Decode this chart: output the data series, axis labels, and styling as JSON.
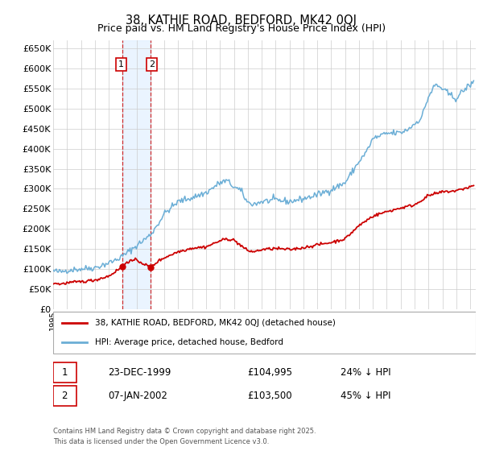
{
  "title": "38, KATHIE ROAD, BEDFORD, MK42 0QJ",
  "subtitle": "Price paid vs. HM Land Registry's House Price Index (HPI)",
  "legend_entry1": "38, KATHIE ROAD, BEDFORD, MK42 0QJ (detached house)",
  "legend_entry2": "HPI: Average price, detached house, Bedford",
  "sale1_date": "23-DEC-1999",
  "sale1_price": 104995,
  "sale1_label": "24% ↓ HPI",
  "sale2_date": "07-JAN-2002",
  "sale2_price": 103500,
  "sale2_label": "45% ↓ HPI",
  "footnote": "Contains HM Land Registry data © Crown copyright and database right 2025.\nThis data is licensed under the Open Government Licence v3.0.",
  "hpi_color": "#6baed6",
  "price_color": "#cc0000",
  "background_color": "#ffffff",
  "grid_color": "#cccccc",
  "sale1_year": 1999.97,
  "sale2_year": 2002.02,
  "shade_color": "#ddeeff",
  "vline_color": "#cc0000"
}
